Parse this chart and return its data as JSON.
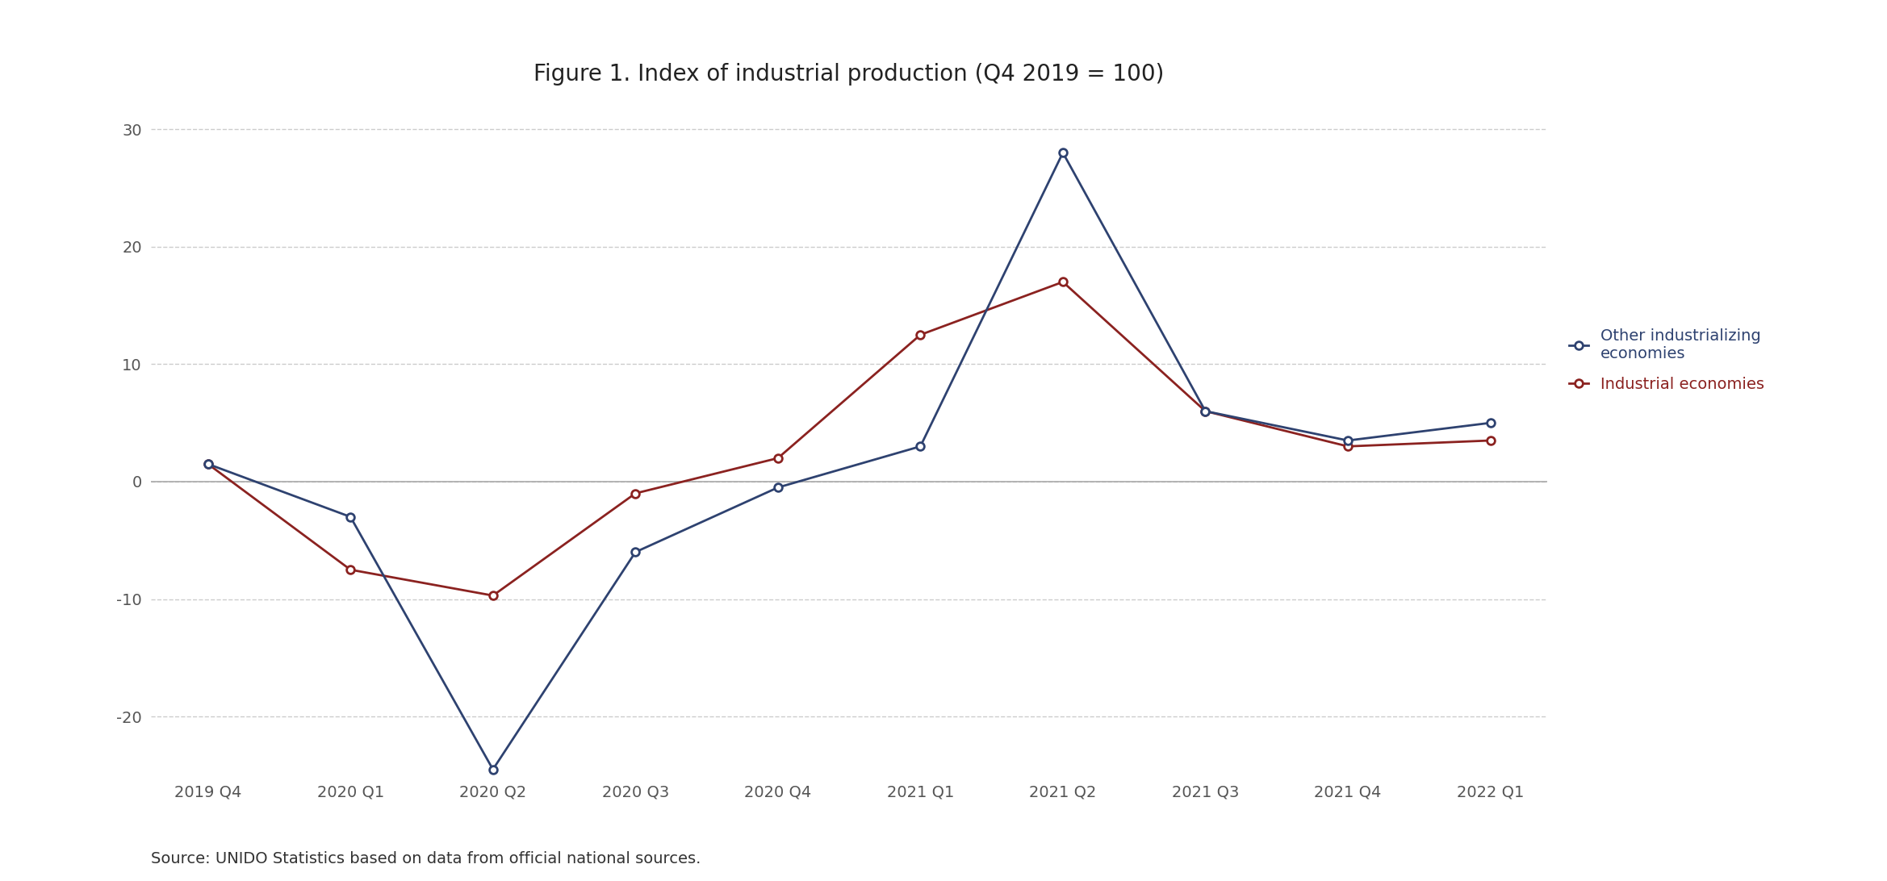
{
  "title": "Figure 1. Index of industrial production (Q4 2019 = 100)",
  "x_labels": [
    "2019 Q4",
    "2020 Q1",
    "2020 Q2",
    "2020 Q3",
    "2020 Q4",
    "2021 Q1",
    "2021 Q2",
    "2021 Q3",
    "2021 Q4",
    "2022 Q1"
  ],
  "other_industrializing": [
    1.5,
    -3.0,
    -24.5,
    -6.0,
    -0.5,
    3.0,
    28.0,
    6.0,
    3.5,
    5.0
  ],
  "industrial": [
    1.5,
    -7.5,
    -9.7,
    -1.0,
    2.0,
    12.5,
    17.0,
    6.0,
    3.0,
    3.5
  ],
  "color_navy": "#2E4270",
  "color_red": "#8B2220",
  "ylim": [
    -25,
    32
  ],
  "yticks": [
    -20,
    -10,
    0,
    10,
    20,
    30
  ],
  "legend_label_navy": "Other industrializing\neconomies",
  "legend_label_red": "Industrial economies",
  "source_text": "Source: UNIDO Statistics based on data from official national sources.",
  "background_color": "#ffffff",
  "grid_color": "#cccccc",
  "zero_line_color": "#aaaaaa",
  "title_fontsize": 20,
  "axis_fontsize": 14,
  "legend_fontsize": 14,
  "source_fontsize": 14
}
